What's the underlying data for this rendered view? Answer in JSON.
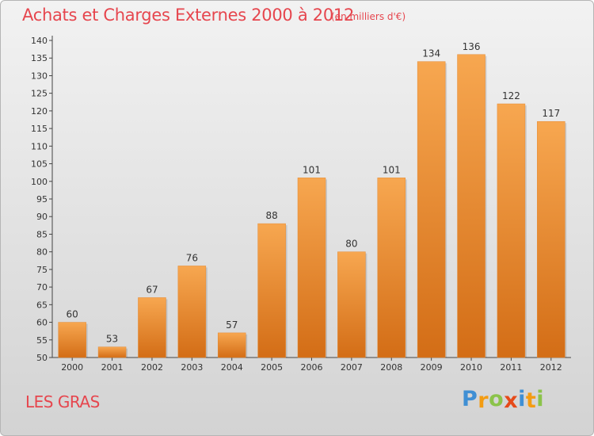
{
  "header": {
    "title": "Achats et Charges Externes 2000 à 2012",
    "unit": "(en milliers d'€)"
  },
  "footer": {
    "commune": "LES GRAS",
    "logo_letters": [
      "P",
      "r",
      "o",
      "x",
      "i",
      "t",
      "i"
    ],
    "logo_colors": [
      "#3f8fd4",
      "#f39c12",
      "#8bc34a",
      "#e64a19",
      "#3f8fd4",
      "#f39c12",
      "#8bc34a"
    ]
  },
  "colors": {
    "bar_light": "#f7a750",
    "bar_dark": "#d36d16",
    "text": "#333333",
    "accent": "#e6464e"
  },
  "chart_data": {
    "type": "bar",
    "title": "Achats et Charges Externes 2000 à 2012",
    "xlabel": "",
    "ylabel": "",
    "categories": [
      "2000",
      "2001",
      "2002",
      "2003",
      "2004",
      "2005",
      "2006",
      "2007",
      "2008",
      "2009",
      "2010",
      "2011",
      "2012"
    ],
    "values": [
      60,
      53,
      67,
      76,
      57,
      88,
      101,
      80,
      101,
      134,
      136,
      122,
      117
    ],
    "ylim": [
      50,
      140
    ],
    "yticks": [
      50,
      55,
      60,
      65,
      70,
      75,
      80,
      85,
      90,
      95,
      100,
      105,
      110,
      115,
      120,
      125,
      130,
      135,
      140
    ],
    "grid": false
  }
}
